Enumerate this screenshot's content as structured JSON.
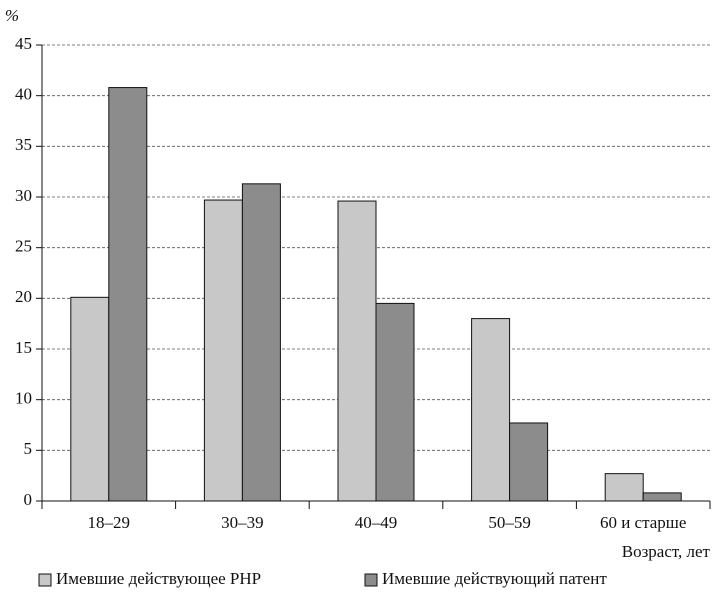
{
  "chart_data": {
    "type": "bar",
    "y_label": "%",
    "x_label": "Возраст, лет",
    "categories": [
      "18–29",
      "30–39",
      "40–49",
      "50–59",
      "60 и старше"
    ],
    "series": [
      {
        "name": "Имевшие действующее РНР",
        "color": "#c8c8c8",
        "values": [
          20.1,
          29.7,
          29.6,
          18.0,
          2.7
        ]
      },
      {
        "name": "Имевшие действующий патент",
        "color": "#8c8c8c",
        "values": [
          40.8,
          31.3,
          19.5,
          7.7,
          0.8
        ]
      }
    ],
    "ylim": [
      0,
      45
    ],
    "yticks": [
      0,
      5,
      10,
      15,
      20,
      25,
      30,
      35,
      40,
      45
    ],
    "grid": true,
    "legend": "bottom"
  }
}
